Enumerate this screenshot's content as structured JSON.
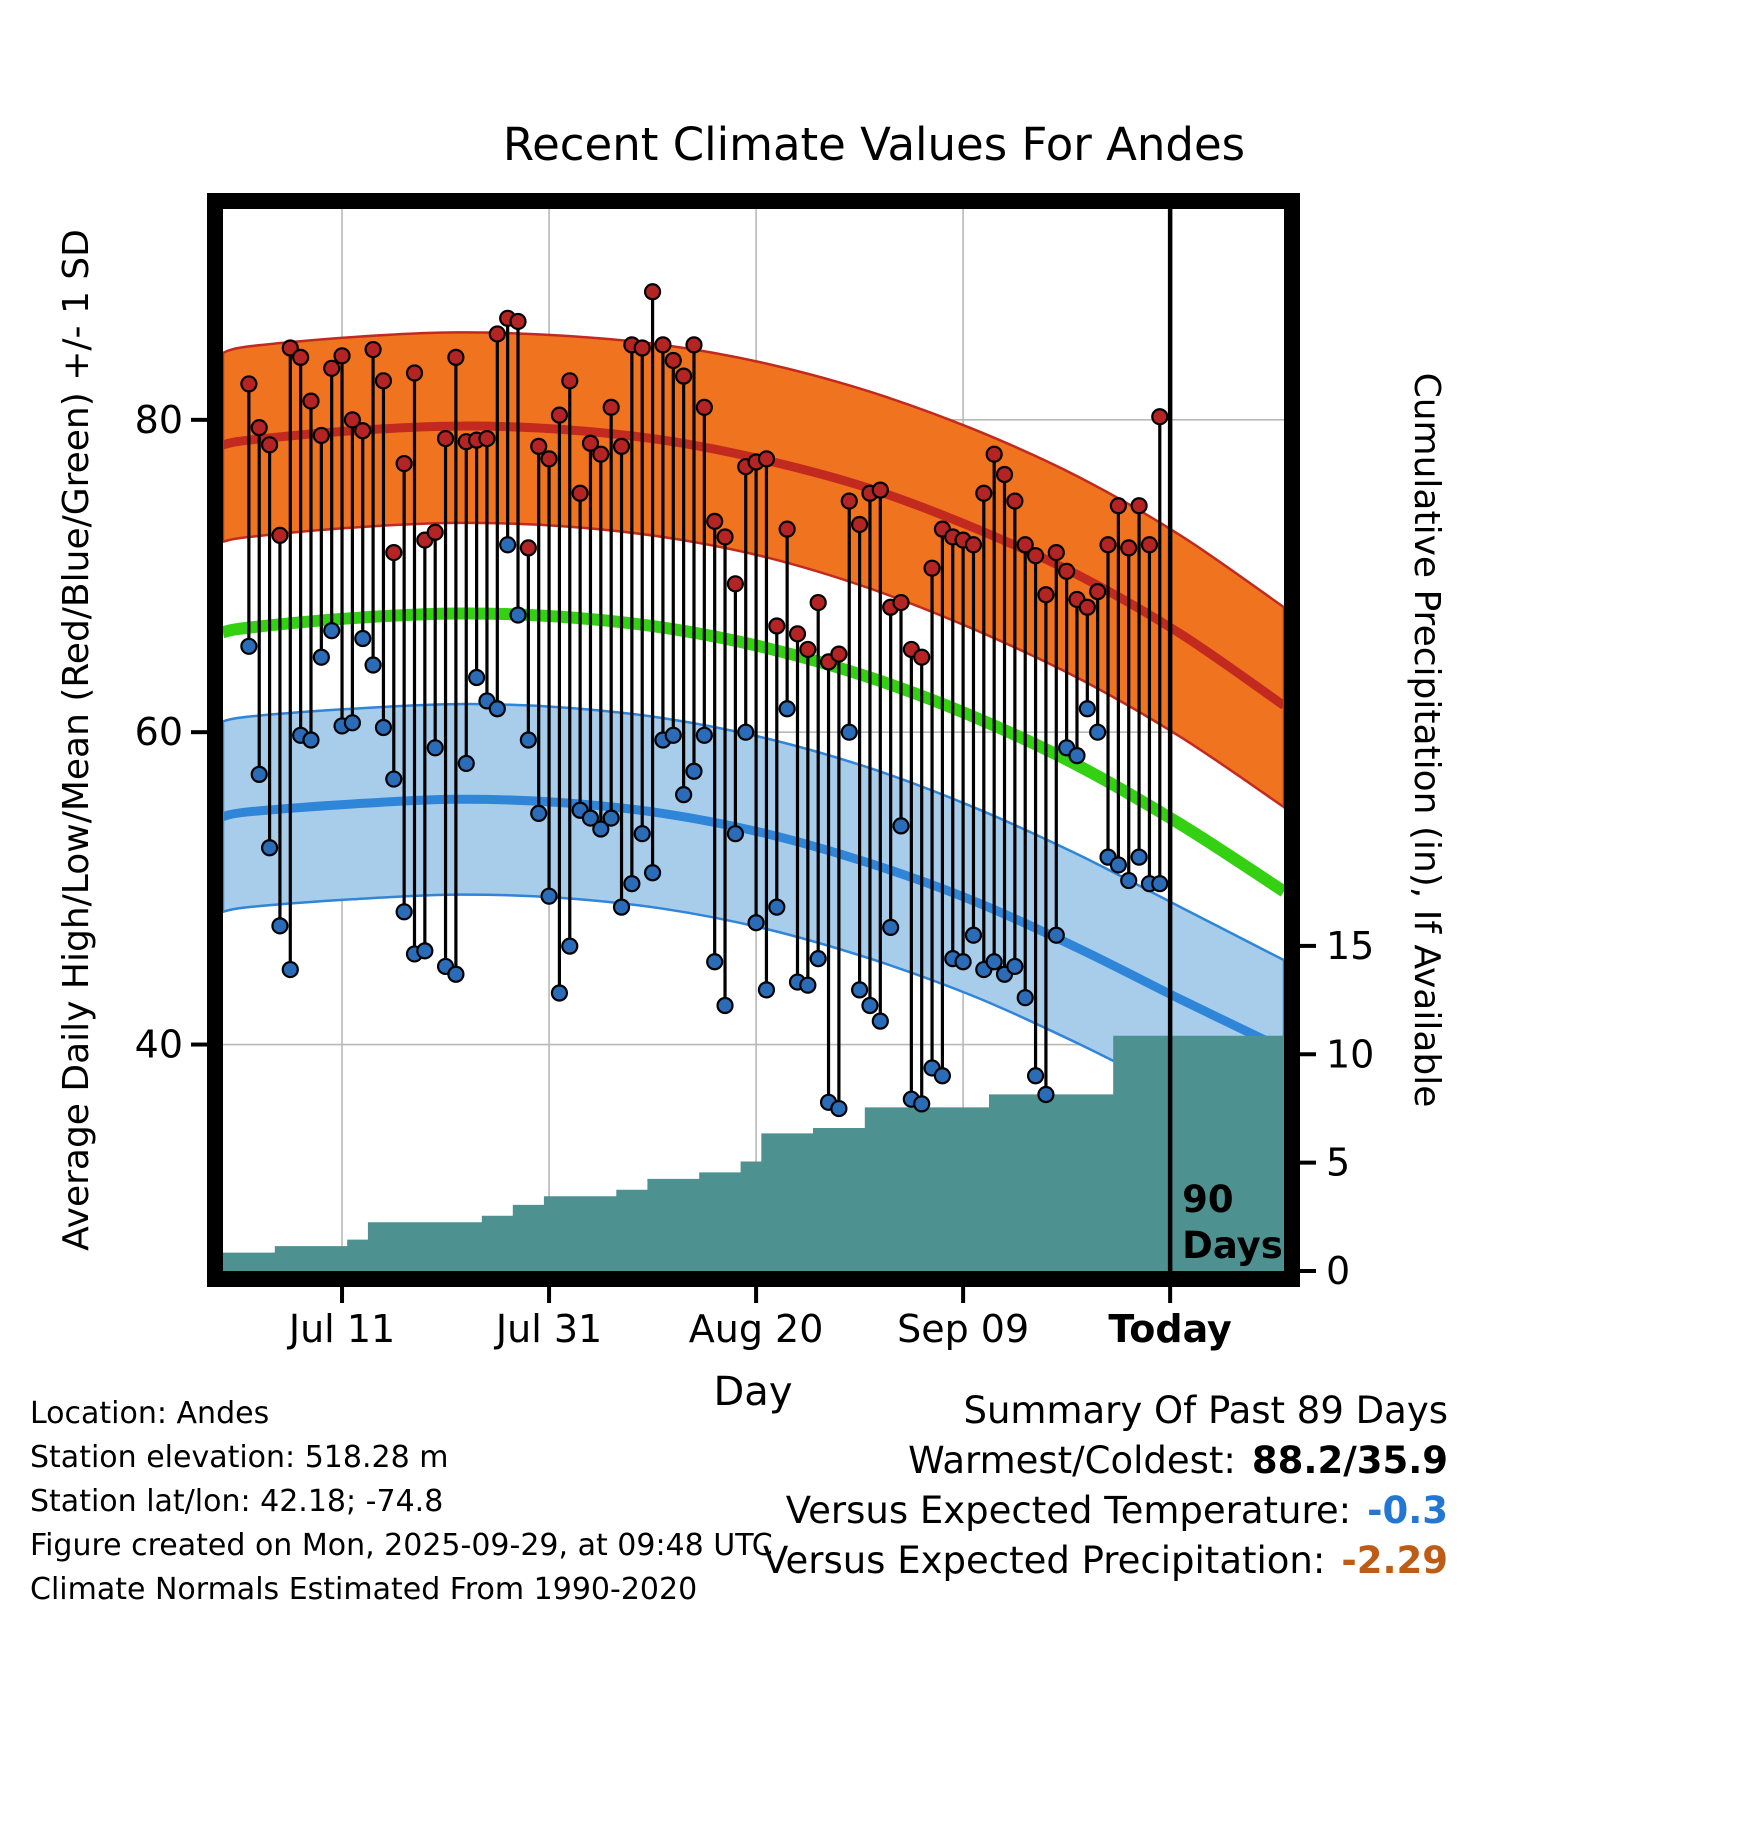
{
  "chart_data": {
    "type": "line",
    "title": "Recent Climate Values For Andes",
    "xlabel": "Day",
    "ylabel_left": "Average Daily High/Low/Mean (Red/Blue/Green) +/- 1 SD",
    "ylabel_right": "Cumulative Precipitation (in), If Available",
    "x_axis": {
      "domain_days": [
        -2.5,
        100
      ],
      "ticks": [
        {
          "day": 9,
          "label": "Jul 11",
          "bold": false
        },
        {
          "day": 29,
          "label": "Jul 31",
          "bold": false
        },
        {
          "day": 49,
          "label": "Aug 20",
          "bold": false
        },
        {
          "day": 69,
          "label": "Sep 09",
          "bold": false
        },
        {
          "day": 89,
          "label": "Today",
          "bold": true
        }
      ]
    },
    "y_left": {
      "domain": [
        25.5,
        93.5
      ],
      "ticks": [
        40,
        60,
        80
      ]
    },
    "y_right": {
      "domain": [
        0,
        49
      ],
      "ticks": [
        0,
        5,
        10,
        15
      ]
    },
    "normals": {
      "sample_days": [
        -2.5,
        0,
        10,
        20,
        30,
        40,
        50,
        60,
        70,
        80,
        90,
        100
      ],
      "high_upper": [
        84.3,
        84.7,
        85.3,
        85.6,
        85.4,
        84.8,
        83.6,
        81.8,
        79.4,
        76.4,
        72.6,
        68.0
      ],
      "high_mean": [
        78.4,
        78.7,
        79.3,
        79.6,
        79.4,
        78.7,
        77.4,
        75.6,
        73.1,
        70.1,
        66.3,
        61.7
      ],
      "high_lower": [
        72.2,
        72.5,
        73.1,
        73.4,
        73.2,
        72.5,
        71.2,
        69.2,
        66.6,
        63.5,
        59.7,
        55.2
      ],
      "mean": [
        66.4,
        66.7,
        67.3,
        67.6,
        67.4,
        66.7,
        65.4,
        63.5,
        61.0,
        57.9,
        54.1,
        49.8
      ],
      "low_upper": [
        60.7,
        61.0,
        61.5,
        61.8,
        61.6,
        60.9,
        59.6,
        57.7,
        55.2,
        52.2,
        48.8,
        45.4
      ],
      "low_mean": [
        54.6,
        54.9,
        55.4,
        55.7,
        55.5,
        54.8,
        53.5,
        51.6,
        49.2,
        46.2,
        42.9,
        39.7
      ],
      "low_lower": [
        48.5,
        48.8,
        49.3,
        49.6,
        49.4,
        48.7,
        47.4,
        45.5,
        43.1,
        40.1,
        36.8,
        33.7
      ]
    },
    "daily": {
      "first_day_index": 0,
      "highs": [
        82.3,
        79.5,
        78.4,
        72.6,
        84.6,
        84.0,
        81.2,
        79.0,
        83.3,
        84.1,
        80.0,
        79.3,
        84.5,
        82.5,
        71.5,
        77.2,
        83.0,
        72.3,
        72.8,
        78.8,
        84.0,
        78.6,
        78.7,
        78.8,
        85.5,
        86.5,
        86.3,
        71.8,
        78.3,
        77.5,
        80.3,
        82.5,
        75.3,
        78.5,
        77.8,
        80.8,
        78.3,
        84.8,
        84.6,
        88.2,
        84.8,
        83.8,
        82.8,
        84.8,
        80.8,
        73.5,
        72.5,
        69.5,
        77.0,
        77.3,
        77.5,
        66.8,
        73.0,
        66.3,
        65.3,
        68.3,
        64.5,
        65.0,
        74.8,
        73.3,
        75.3,
        75.5,
        68.0,
        68.3,
        65.3,
        64.8,
        70.5,
        73.0,
        72.5,
        72.3,
        72.0,
        75.3,
        77.8,
        76.5,
        74.8,
        72.0,
        71.3,
        68.8,
        71.5,
        70.3,
        68.5,
        68.0,
        69.0,
        72.0,
        74.5,
        71.8,
        74.5,
        72.0,
        80.2
      ],
      "lows": [
        65.5,
        57.3,
        52.6,
        47.6,
        44.8,
        59.8,
        59.5,
        64.8,
        66.5,
        60.4,
        60.6,
        66.0,
        64.3,
        60.3,
        57.0,
        48.5,
        45.8,
        46.0,
        59.0,
        45.0,
        44.5,
        58.0,
        63.5,
        62.0,
        61.5,
        72.0,
        67.5,
        59.5,
        54.8,
        49.5,
        43.3,
        46.3,
        55.0,
        54.5,
        53.8,
        54.5,
        48.8,
        50.3,
        53.5,
        51.0,
        59.5,
        59.8,
        56.0,
        57.5,
        59.8,
        45.3,
        42.5,
        53.5,
        60.0,
        47.8,
        43.5,
        48.8,
        61.5,
        44.0,
        43.8,
        45.5,
        36.3,
        35.9,
        60.0,
        43.5,
        42.5,
        41.5,
        47.5,
        54.0,
        36.5,
        36.2,
        38.5,
        38.0,
        45.5,
        45.3,
        47.0,
        44.8,
        45.3,
        44.5,
        45.0,
        43.0,
        38.0,
        36.8,
        47.0,
        59.0,
        58.5,
        61.5,
        60.0,
        52.0,
        51.5,
        50.5,
        52.0,
        50.3,
        50.3
      ]
    },
    "precip_cumulative": [
      0.85,
      0.85,
      0.85,
      1.15,
      1.15,
      1.15,
      1.15,
      1.15,
      1.15,
      1.15,
      1.45,
      1.45,
      2.25,
      2.25,
      2.25,
      2.25,
      2.25,
      2.25,
      2.25,
      2.25,
      2.25,
      2.25,
      2.25,
      2.55,
      2.55,
      2.55,
      3.05,
      3.05,
      3.05,
      3.45,
      3.45,
      3.45,
      3.45,
      3.45,
      3.45,
      3.45,
      3.75,
      3.75,
      3.75,
      4.25,
      4.25,
      4.25,
      4.25,
      4.25,
      4.55,
      4.55,
      4.55,
      4.55,
      5.05,
      5.05,
      6.35,
      6.35,
      6.35,
      6.35,
      6.35,
      6.6,
      6.6,
      6.6,
      6.6,
      6.6,
      7.55,
      7.55,
      7.55,
      7.55,
      7.55,
      7.55,
      7.55,
      7.55,
      7.55,
      7.55,
      7.55,
      7.55,
      8.15,
      8.15,
      8.15,
      8.15,
      8.15,
      8.15,
      8.15,
      8.15,
      8.15,
      8.15,
      8.15,
      8.15,
      10.85,
      10.85,
      10.85,
      10.85,
      10.85
    ],
    "today_line": {
      "day": 89,
      "label_line1": "90",
      "label_line2": "Days"
    },
    "colors": {
      "grid": "#b9b9b9",
      "high_band": "#f0741f",
      "high_line": "#c22a20",
      "mean_line": "#33d112",
      "low_band": "#a7cdeb",
      "low_line": "#2f85d8",
      "dot_high": "#b42424",
      "dot_low": "#2b6cb8",
      "precip_fill": "#4e9191",
      "today_line": "#000000"
    }
  },
  "footer": {
    "lines": [
      "Location: Andes",
      "Station elevation: 518.28 m",
      "Station lat/lon: 42.18; -74.8",
      "Figure created on Mon, 2025-09-29, at 09:48 UTC",
      "Climate Normals Estimated From 1990-2020"
    ]
  },
  "summary": {
    "title": "Summary Of Past 89 Days",
    "rows": [
      {
        "label": "Warmest/Coldest:",
        "value": "88.2/35.9",
        "color": "#000000"
      },
      {
        "label": "Versus Expected Temperature:",
        "value": "-0.3",
        "color": "#2277d4"
      },
      {
        "label": "Versus Expected Precipitation:",
        "value": "-2.29",
        "color": "#bd5c17"
      }
    ]
  }
}
